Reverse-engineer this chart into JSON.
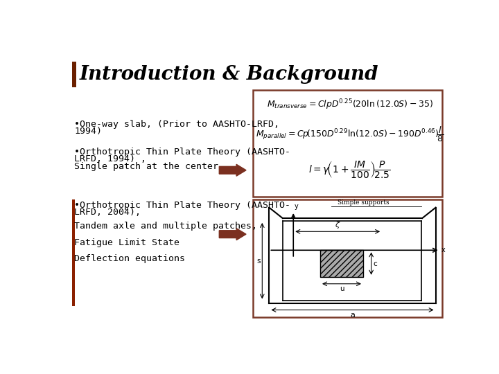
{
  "title": "Introduction & Background",
  "title_bar_color": "#6B2000",
  "background_color": "#FFFFFF",
  "bullet1_line1": "•One-way slab, (Prior to AASHTO-LRFD,",
  "bullet1_line2": "1994)",
  "bullet2_line1": "•Orthotropic Thin Plate Theory (AASHTO-",
  "bullet2_line2": "LRFD, 1994) ,",
  "bullet2_line3": "Single patch at the center",
  "bullet3_line1": "•Orthotropic Thin Plate Theory (AASHTO-",
  "bullet3_line2": "LRFD, 2004),",
  "bullet4": "Tandem axle and multiple patches,",
  "bullet5": "Fatigue Limit State",
  "bullet6": "Deflection equations",
  "eq_box_color": "#7B3B2A",
  "arrow_color": "#7B3020",
  "sidebar_color": "#8B2000",
  "diagram_box_color": "#7B3B2A",
  "font_size_title": 20,
  "font_size_text": 9.5,
  "font_size_eq": 9
}
